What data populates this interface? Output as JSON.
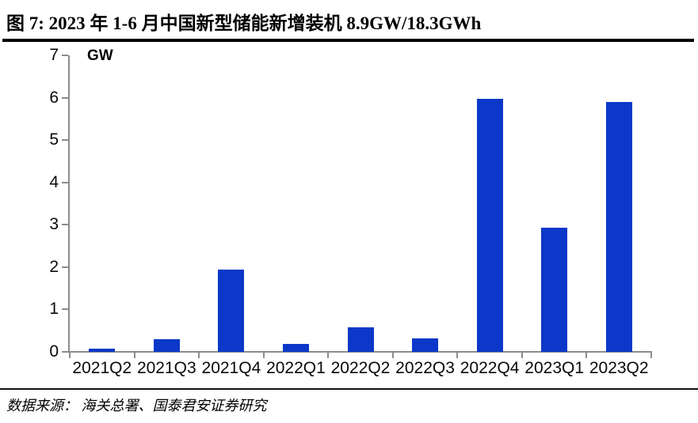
{
  "header": {
    "figure_label": "图 7:",
    "title": "图 7:  2023 年 1-6 月中国新型储能新增装机 8.9GW/18.3GWh"
  },
  "chart_data": {
    "type": "bar",
    "title": "2023 年 1-6 月中国新型储能新增装机 8.9GW/18.3GWh",
    "unit_label": "GW",
    "xlabel": "",
    "ylabel": "GW",
    "categories": [
      "2021Q2",
      "2021Q3",
      "2021Q4",
      "2022Q1",
      "2022Q2",
      "2022Q3",
      "2022Q4",
      "2023Q1",
      "2023Q2"
    ],
    "values": [
      0.08,
      0.3,
      1.95,
      0.18,
      0.57,
      0.32,
      5.97,
      2.93,
      5.9
    ],
    "ylim": [
      0,
      7
    ],
    "yticks": [
      0,
      1,
      2,
      3,
      4,
      5,
      6,
      7
    ],
    "grid": false,
    "legend": false,
    "bar_color": "#0b38c8",
    "axis_color": "#8c8c8c",
    "tick_label_color": "#0a0a0a"
  },
  "footer": {
    "source": "数据来源： 海关总署、国泰君安证券研究"
  }
}
